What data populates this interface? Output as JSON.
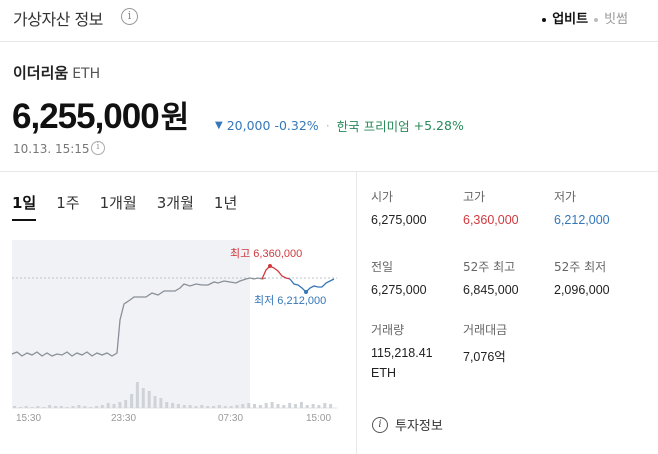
{
  "header": {
    "title": "가상자산 정보",
    "sources": [
      {
        "label": "업비트",
        "active": true
      },
      {
        "label": "빗썸",
        "active": false
      }
    ]
  },
  "coin": {
    "name": "이더리움",
    "symbol": "ETH",
    "price": "6,255,000",
    "unit": "원",
    "change_amount": "20,000",
    "change_pct": "-0.32%",
    "premium_label": "한국 프리미엄",
    "premium_value": "+5.28%",
    "timestamp": "10.13. 15:15"
  },
  "periods": [
    "1일",
    "1주",
    "1개월",
    "3개월",
    "1년"
  ],
  "chart_data": {
    "type": "line",
    "x_ticks": [
      "15:30",
      "23:30",
      "07:30",
      "15:00"
    ],
    "high_label": "최고 6,360,000",
    "low_label": "최저 6,212,000",
    "colors": {
      "line": "#8a9099",
      "high": "#d0393e",
      "low": "#3577b8",
      "volume": "#cfd3d8",
      "shade": "#f0f2f5"
    }
  },
  "stats": {
    "open": {
      "label": "시가",
      "value": "6,275,000"
    },
    "high": {
      "label": "고가",
      "value": "6,360,000"
    },
    "low": {
      "label": "저가",
      "value": "6,212,000"
    },
    "prev": {
      "label": "전일",
      "value": "6,275,000"
    },
    "high52": {
      "label": "52주 최고",
      "value": "6,845,000"
    },
    "low52": {
      "label": "52주 최저",
      "value": "2,096,000"
    },
    "volume": {
      "label": "거래량",
      "value_line1": "115,218.41",
      "value_line2": "ETH"
    },
    "amount": {
      "label": "거래대금",
      "value": "7,076억"
    }
  },
  "invest_info": {
    "label": "투자정보"
  }
}
